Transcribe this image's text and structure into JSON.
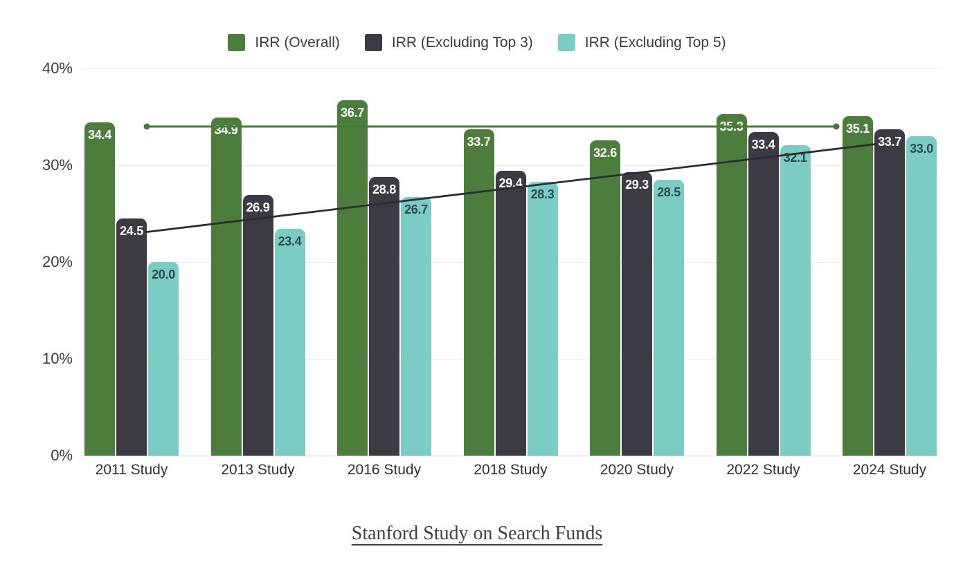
{
  "chart_data": {
    "type": "bar",
    "title": "",
    "categories": [
      "2011 Study",
      "2013 Study",
      "2016 Study",
      "2018 Study",
      "2020 Study",
      "2022 Study",
      "2024 Study"
    ],
    "series": [
      {
        "name": "IRR (Overall)",
        "color": "#4d7d3c",
        "label_color": "#ffffff",
        "values": [
          34.4,
          34.9,
          36.7,
          33.7,
          32.6,
          35.3,
          35.1
        ]
      },
      {
        "name": "IRR (Excluding Top 3)",
        "color": "#3c3a43",
        "label_color": "#ffffff",
        "values": [
          24.5,
          26.9,
          28.8,
          29.4,
          29.3,
          33.4,
          33.7
        ]
      },
      {
        "name": "IRR (Excluding Top 5)",
        "color": "#7accc5",
        "label_color": "#304a4e",
        "values": [
          20.0,
          23.4,
          26.7,
          28.3,
          28.5,
          32.1,
          33.0
        ]
      }
    ],
    "yticks": [
      "0%",
      "10%",
      "20%",
      "30%",
      "40%"
    ],
    "ylim": [
      0,
      40
    ],
    "grid": true,
    "bar_value_labels": true,
    "legend_position": "top-center",
    "annotations": {
      "overall_reference_line": {
        "value": 34.0,
        "color": "#3e7d33",
        "style": "horizontal-line-with-end-dots"
      },
      "excluding_top3_trend_line": {
        "start_value": 23.1,
        "end_value": 32.2,
        "color": "#2e2d33",
        "style": "straight-trend-line"
      }
    }
  },
  "footer": {
    "link_label": "Stanford Study on Search Funds"
  },
  "colors": {
    "background": "#ffffff",
    "gridline": "#e9e9e9",
    "axis_line": "#d2d2d2",
    "axis_label_color": "#3b3b3b"
  }
}
